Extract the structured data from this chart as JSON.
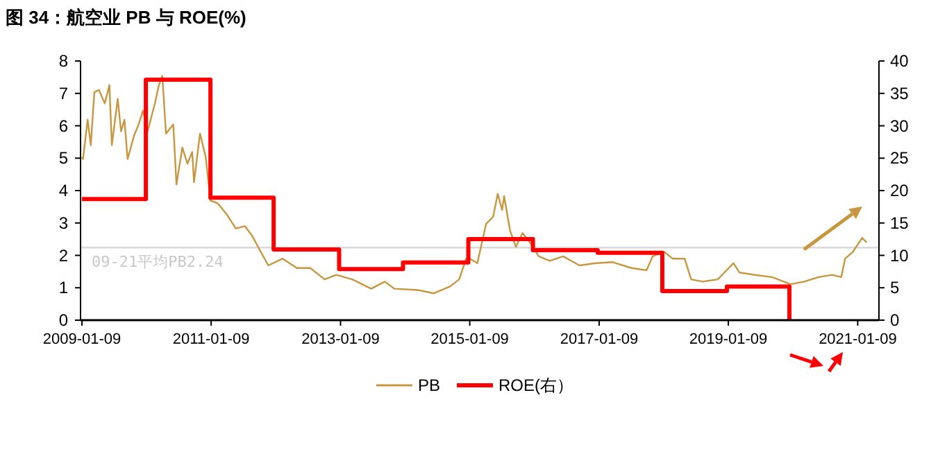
{
  "chart_data": {
    "type": "line",
    "title": "图 34：航空业 PB 与 ROE(%)",
    "xlim": [
      "2009-01-01",
      "2021-05-09"
    ],
    "xticks": [
      "2009-01-09",
      "2011-01-09",
      "2013-01-09",
      "2015-01-09",
      "2017-01-09",
      "2019-01-09",
      "2021-01-09"
    ],
    "ylim": [
      0,
      8
    ],
    "yticks": [
      0,
      1,
      2,
      3,
      4,
      5,
      6,
      7,
      8
    ],
    "y2lim": [
      0,
      40
    ],
    "y2ticks": [
      0,
      5,
      10,
      15,
      20,
      25,
      30,
      35,
      40
    ],
    "grid": false,
    "legend": "bottom",
    "marker": "none",
    "line_style": "solid",
    "ref_lines": [
      {
        "axis": "y",
        "value": 2.24,
        "label": "09-21平均PB2.24",
        "color": "#d9d9d9"
      }
    ],
    "series": [
      {
        "name": "PB",
        "color": "#c8963e",
        "type": "line",
        "x": [
          "2009-01-09",
          "2009-01-15",
          "2009-02-10",
          "2009-02-28",
          "2009-03-20",
          "2009-04-15",
          "2009-05-18",
          "2009-06-13",
          "2009-06-27",
          "2009-07-30",
          "2009-08-18",
          "2009-09-06",
          "2009-09-24",
          "2009-10-30",
          "2009-11-25",
          "2009-12-20",
          "2010-01-15",
          "2010-02-25",
          "2010-03-20",
          "2010-04-08",
          "2010-04-29",
          "2010-06-09",
          "2010-06-27",
          "2010-07-30",
          "2010-08-28",
          "2010-09-24",
          "2010-10-04",
          "2010-11-07",
          "2010-12-09",
          "2011-01-05",
          "2011-02-14",
          "2011-04-08",
          "2011-05-28",
          "2011-07-19",
          "2011-08-28",
          "2011-10-08",
          "2011-11-28",
          "2012-02-17",
          "2012-05-07",
          "2012-07-22",
          "2012-10-11",
          "2012-12-16",
          "2013-03-16",
          "2013-07-01",
          "2013-09-16",
          "2013-11-10",
          "2014-03-20",
          "2014-06-20",
          "2014-09-20",
          "2014-11-10",
          "2014-12-20",
          "2015-01-09",
          "2015-02-21",
          "2015-04-11",
          "2015-05-21",
          "2015-06-16",
          "2015-07-11",
          "2015-07-22",
          "2015-08-25",
          "2015-09-27",
          "2015-11-03",
          "2015-12-24",
          "2016-02-03",
          "2016-04-05",
          "2016-06-20",
          "2016-09-20",
          "2016-12-20",
          "2017-03-27",
          "2017-07-11",
          "2017-10-04",
          "2017-11-07",
          "2018-01-12",
          "2018-02-28",
          "2018-05-07",
          "2018-06-13",
          "2018-08-18",
          "2018-11-10",
          "2019-02-07",
          "2019-03-13",
          "2019-06-02",
          "2019-09-13",
          "2019-12-27",
          "2020-03-13",
          "2020-06-02",
          "2020-08-18",
          "2020-10-08",
          "2020-10-30",
          "2020-12-13",
          "2021-02-03",
          "2021-02-28"
        ],
        "values": [
          5.04,
          4.97,
          6.19,
          5.4,
          7.04,
          7.1,
          6.69,
          7.26,
          5.4,
          6.83,
          5.83,
          6.19,
          4.97,
          5.69,
          6.04,
          6.47,
          5.83,
          6.69,
          7.26,
          7.54,
          5.76,
          6.04,
          4.19,
          5.33,
          4.83,
          5.19,
          4.26,
          5.76,
          5.04,
          3.69,
          3.61,
          3.26,
          2.83,
          2.9,
          2.61,
          2.19,
          1.69,
          1.9,
          1.61,
          1.61,
          1.26,
          1.4,
          1.26,
          0.97,
          1.19,
          0.97,
          0.93,
          0.83,
          1.04,
          1.26,
          1.9,
          1.9,
          1.76,
          2.97,
          3.19,
          3.9,
          3.4,
          3.83,
          2.76,
          2.26,
          2.69,
          2.33,
          1.97,
          1.83,
          1.97,
          1.69,
          1.76,
          1.79,
          1.61,
          1.54,
          1.97,
          2.11,
          1.9,
          1.9,
          1.26,
          1.19,
          1.26,
          1.76,
          1.47,
          1.4,
          1.33,
          1.11,
          1.19,
          1.33,
          1.4,
          1.33,
          1.9,
          2.11,
          2.54,
          2.4
        ]
      },
      {
        "name": "ROE(右）",
        "color": "#ff0000",
        "type": "step",
        "axis": "y2",
        "x": [
          "2009-01-09",
          "2010-01-05",
          "2011-01-05",
          "2011-12-28",
          "2013-01-01",
          "2013-12-28",
          "2015-01-01",
          "2016-01-01",
          "2017-01-01",
          "2018-01-01",
          "2019-01-01",
          "2019-12-20"
        ],
        "values": [
          18.7,
          37.1,
          18.9,
          10.9,
          7.9,
          8.9,
          12.5,
          10.8,
          10.4,
          4.5,
          5.2,
          0
        ]
      }
    ]
  }
}
